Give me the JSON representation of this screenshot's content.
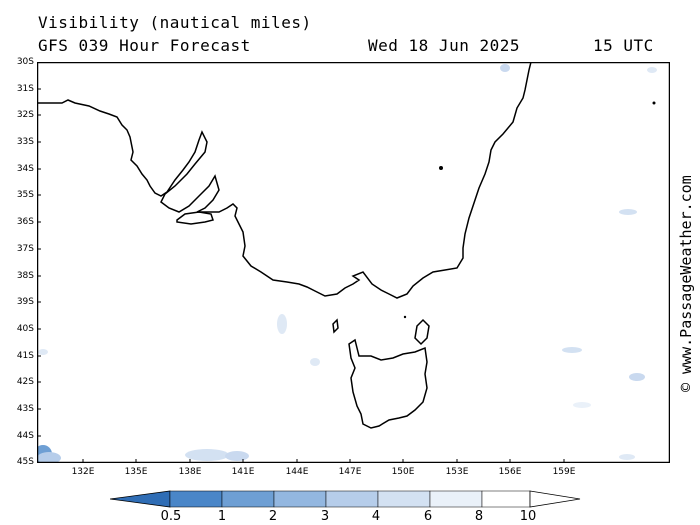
{
  "header": {
    "title": "Visibility (nautical miles)",
    "subtitle": "GFS 039 Hour Forecast",
    "date": "Wed 18 Jun 2025",
    "time": "15 UTC"
  },
  "credit": "© www.PassageWeather.com",
  "axes": {
    "lat_labels": [
      "30S",
      "31S",
      "32S",
      "33S",
      "34S",
      "35S",
      "36S",
      "37S",
      "38S",
      "39S",
      "40S",
      "41S",
      "42S",
      "43S",
      "44S",
      "45S"
    ],
    "lon_labels": [
      "132E",
      "135E",
      "138E",
      "141E",
      "144E",
      "147E",
      "150E",
      "153E",
      "156E",
      "159E"
    ]
  },
  "legend": {
    "labels": [
      "0.5",
      "1",
      "2",
      "3",
      "4",
      "6",
      "8",
      "10"
    ],
    "colors": [
      "#2f6db5",
      "#4a86c8",
      "#6e9fd4",
      "#93b7e0",
      "#b6cdea",
      "#d3e1f2",
      "#eaf1f9",
      "#ffffff"
    ]
  },
  "colors": {
    "land_outline": "#000000",
    "frame": "#000000",
    "low_vis": "#c9d9ef"
  }
}
